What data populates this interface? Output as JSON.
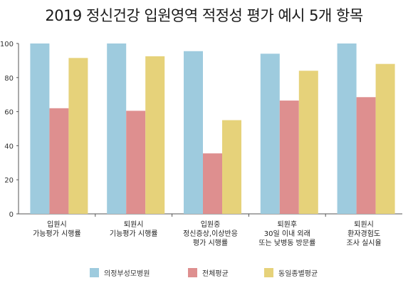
{
  "chart_data": {
    "type": "bar",
    "title": "2019 정신건강 입원영역 적정성 평가 예시 5개 항목",
    "categories": [
      [
        "입원시",
        "가능평가 시행률"
      ],
      [
        "퇴원시",
        "기능평가 시행률"
      ],
      [
        "입원중",
        "정신증상,이상반응",
        "평가 시행률"
      ],
      [
        "퇴원후",
        "30일 이내 외래",
        "또는 낮병동 방문률"
      ],
      [
        "퇴원시",
        "환자경험도",
        "조사 실시율"
      ]
    ],
    "series": [
      {
        "name": "의정부성모병원",
        "color": "#9ecbde",
        "values": [
          100,
          100,
          95.5,
          94,
          100
        ]
      },
      {
        "name": "전체평균",
        "color": "#de8f8f",
        "values": [
          62,
          60.5,
          35.5,
          66.5,
          68.5
        ]
      },
      {
        "name": "동일종별평균",
        "color": "#e6d27a",
        "values": [
          91.5,
          92.5,
          55,
          84,
          88
        ]
      }
    ],
    "ylim": [
      0,
      100
    ],
    "yticks": [
      0,
      20,
      40,
      60,
      80,
      100
    ],
    "grid": false,
    "legend": "bottom",
    "xlabel": "",
    "ylabel": ""
  }
}
